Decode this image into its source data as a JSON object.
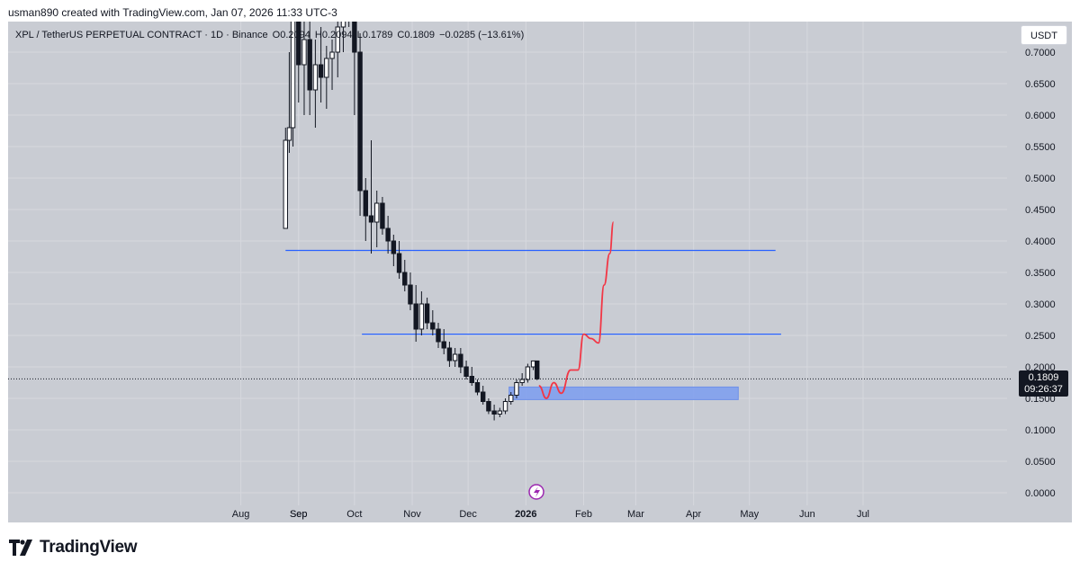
{
  "header": {
    "text": "usman890 created with TradingView.com, Jan 07, 2026 11:33 UTC-3"
  },
  "legend": {
    "symbol": "XPL / TetherUS PERPETUAL CONTRACT · 1D · Binance",
    "open": "O0.2094",
    "high": "H0.2094",
    "low": "L0.1789",
    "close": "C0.1809",
    "change": "−0.0285 (−13.61%)"
  },
  "currency_button": "USDT",
  "price_tag": {
    "price": "0.1809",
    "countdown": "09:26:37"
  },
  "footer": {
    "brand": "TradingView"
  },
  "colors": {
    "chart_bg": "#c9ccd3",
    "candle": "#131722",
    "level_line": "#2962ff",
    "zone": "#7b9cf0",
    "projection": "#f23645",
    "grid": "#d6d8de"
  },
  "chart_data": {
    "type": "candlestick",
    "title": "XPL / TetherUS PERPETUAL CONTRACT · 1D · Binance",
    "y_axis": {
      "ticks": [
        "0.7000",
        "0.6500",
        "0.6000",
        "0.5500",
        "0.5000",
        "0.4500",
        "0.4000",
        "0.3500",
        "0.3000",
        "0.2500",
        "0.2000",
        "0.1500",
        "0.1000",
        "0.0500",
        "0.0000"
      ],
      "range": [
        0,
        0.7
      ]
    },
    "x_axis": {
      "ticks": [
        "Sep",
        "Oct",
        "Nov",
        "Dec",
        "2026",
        "Feb",
        "Mar",
        "Apr",
        "May",
        "Jun",
        "Jul",
        "Aug",
        "Sep"
      ],
      "bold_tick": "2026"
    },
    "price_series": [
      {
        "date": "Aug 25",
        "o": 0.42,
        "h": 0.58,
        "l": 0.42,
        "c": 0.56
      },
      {
        "date": "Aug 27",
        "o": 0.56,
        "h": 0.7,
        "l": 0.54,
        "c": 0.58
      },
      {
        "date": "Aug 29",
        "o": 0.58,
        "h": 0.8,
        "l": 0.55,
        "c": 0.75
      },
      {
        "date": "Sep 01",
        "o": 0.75,
        "h": 0.9,
        "l": 0.62,
        "c": 0.68
      },
      {
        "date": "Sep 04",
        "o": 0.68,
        "h": 0.78,
        "l": 0.6,
        "c": 0.72
      },
      {
        "date": "Sep 07",
        "o": 0.72,
        "h": 0.76,
        "l": 0.6,
        "c": 0.64
      },
      {
        "date": "Sep 10",
        "o": 0.64,
        "h": 0.72,
        "l": 0.58,
        "c": 0.68
      },
      {
        "date": "Sep 13",
        "o": 0.68,
        "h": 0.74,
        "l": 0.62,
        "c": 0.66
      },
      {
        "date": "Sep 16",
        "o": 0.66,
        "h": 0.71,
        "l": 0.61,
        "c": 0.69
      },
      {
        "date": "Sep 19",
        "o": 0.69,
        "h": 0.72,
        "l": 0.64,
        "c": 0.7
      },
      {
        "date": "Sep 22",
        "o": 0.7,
        "h": 0.78,
        "l": 0.66,
        "c": 0.74
      },
      {
        "date": "Sep 25",
        "o": 0.74,
        "h": 0.85,
        "l": 0.7,
        "c": 0.8
      },
      {
        "date": "Sep 28",
        "o": 0.8,
        "h": 0.88,
        "l": 0.74,
        "c": 0.82
      },
      {
        "date": "Oct 01",
        "o": 0.82,
        "h": 0.84,
        "l": 0.6,
        "c": 0.7
      },
      {
        "date": "Oct 04",
        "o": 0.7,
        "h": 0.73,
        "l": 0.44,
        "c": 0.48
      },
      {
        "date": "Oct 07",
        "o": 0.48,
        "h": 0.5,
        "l": 0.4,
        "c": 0.44
      },
      {
        "date": "Oct 10",
        "o": 0.44,
        "h": 0.56,
        "l": 0.38,
        "c": 0.43
      },
      {
        "date": "Oct 13",
        "o": 0.43,
        "h": 0.48,
        "l": 0.39,
        "c": 0.46
      },
      {
        "date": "Oct 16",
        "o": 0.46,
        "h": 0.47,
        "l": 0.41,
        "c": 0.42
      },
      {
        "date": "Oct 19",
        "o": 0.42,
        "h": 0.44,
        "l": 0.38,
        "c": 0.4
      },
      {
        "date": "Oct 22",
        "o": 0.4,
        "h": 0.41,
        "l": 0.36,
        "c": 0.38
      },
      {
        "date": "Oct 25",
        "o": 0.38,
        "h": 0.4,
        "l": 0.34,
        "c": 0.35
      },
      {
        "date": "Oct 28",
        "o": 0.35,
        "h": 0.37,
        "l": 0.32,
        "c": 0.33
      },
      {
        "date": "Oct 31",
        "o": 0.33,
        "h": 0.35,
        "l": 0.29,
        "c": 0.3
      },
      {
        "date": "Nov 03",
        "o": 0.3,
        "h": 0.33,
        "l": 0.24,
        "c": 0.26
      },
      {
        "date": "Nov 06",
        "o": 0.26,
        "h": 0.32,
        "l": 0.25,
        "c": 0.3
      },
      {
        "date": "Nov 09",
        "o": 0.3,
        "h": 0.31,
        "l": 0.26,
        "c": 0.27
      },
      {
        "date": "Nov 12",
        "o": 0.27,
        "h": 0.29,
        "l": 0.25,
        "c": 0.26
      },
      {
        "date": "Nov 15",
        "o": 0.26,
        "h": 0.27,
        "l": 0.23,
        "c": 0.24
      },
      {
        "date": "Nov 18",
        "o": 0.24,
        "h": 0.26,
        "l": 0.22,
        "c": 0.23
      },
      {
        "date": "Nov 21",
        "o": 0.23,
        "h": 0.24,
        "l": 0.2,
        "c": 0.21
      },
      {
        "date": "Nov 24",
        "o": 0.21,
        "h": 0.23,
        "l": 0.2,
        "c": 0.22
      },
      {
        "date": "Nov 27",
        "o": 0.22,
        "h": 0.23,
        "l": 0.19,
        "c": 0.2
      },
      {
        "date": "Nov 30",
        "o": 0.2,
        "h": 0.21,
        "l": 0.18,
        "c": 0.185
      },
      {
        "date": "Dec 03",
        "o": 0.185,
        "h": 0.2,
        "l": 0.17,
        "c": 0.175
      },
      {
        "date": "Dec 06",
        "o": 0.175,
        "h": 0.18,
        "l": 0.155,
        "c": 0.16
      },
      {
        "date": "Dec 09",
        "o": 0.16,
        "h": 0.17,
        "l": 0.14,
        "c": 0.145
      },
      {
        "date": "Dec 12",
        "o": 0.145,
        "h": 0.15,
        "l": 0.125,
        "c": 0.13
      },
      {
        "date": "Dec 15",
        "o": 0.13,
        "h": 0.14,
        "l": 0.115,
        "c": 0.125
      },
      {
        "date": "Dec 18",
        "o": 0.125,
        "h": 0.135,
        "l": 0.12,
        "c": 0.13
      },
      {
        "date": "Dec 21",
        "o": 0.13,
        "h": 0.15,
        "l": 0.125,
        "c": 0.145
      },
      {
        "date": "Dec 24",
        "o": 0.145,
        "h": 0.16,
        "l": 0.14,
        "c": 0.155
      },
      {
        "date": "Dec 27",
        "o": 0.155,
        "h": 0.18,
        "l": 0.15,
        "c": 0.175
      },
      {
        "date": "Dec 30",
        "o": 0.175,
        "h": 0.19,
        "l": 0.17,
        "c": 0.18
      },
      {
        "date": "Jan 02",
        "o": 0.18,
        "h": 0.205,
        "l": 0.175,
        "c": 0.2
      },
      {
        "date": "Jan 05",
        "o": 0.2,
        "h": 0.21,
        "l": 0.195,
        "c": 0.2094
      },
      {
        "date": "Jan 07",
        "o": 0.2094,
        "h": 0.2094,
        "l": 0.1789,
        "c": 0.1809
      }
    ],
    "horizontal_levels": [
      {
        "price": 0.385,
        "from": "Aug 25",
        "to": "May 15"
      },
      {
        "price": 0.252,
        "from": "Oct 05",
        "to": "May 18"
      }
    ],
    "zone": {
      "top": 0.168,
      "bottom": 0.148,
      "from": "Dec 23",
      "to": "Apr 25"
    },
    "projection_path": [
      {
        "date": "Jan 08",
        "y": 0.17
      },
      {
        "date": "Jan 12",
        "y": 0.15
      },
      {
        "date": "Jan 16",
        "y": 0.175
      },
      {
        "date": "Jan 20",
        "y": 0.158
      },
      {
        "date": "Jan 25",
        "y": 0.195
      },
      {
        "date": "Jan 29",
        "y": 0.195
      },
      {
        "date": "Feb 01",
        "y": 0.252
      },
      {
        "date": "Feb 05",
        "y": 0.245
      },
      {
        "date": "Feb 09",
        "y": 0.238
      },
      {
        "date": "Feb 12",
        "y": 0.33
      },
      {
        "date": "Feb 15",
        "y": 0.38
      },
      {
        "date": "Feb 17",
        "y": 0.43
      }
    ],
    "current_price": 0.1809
  }
}
